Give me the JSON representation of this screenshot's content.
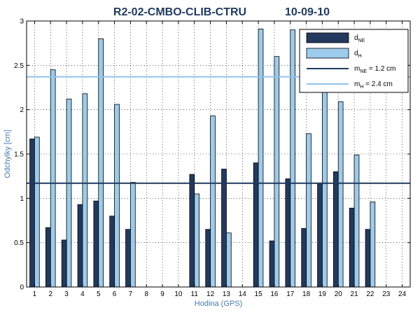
{
  "chart_data": {
    "type": "bar",
    "title_left": "R2-02-CMBO-CLIB-CTRU",
    "title_right": "10-09-10",
    "xlabel": "Hodina (GPS)",
    "ylabel": "Odchylky [cm]",
    "ylim": [
      0,
      3
    ],
    "yticks": [
      "0",
      "0.5",
      "1",
      "1.5",
      "2",
      "2.5",
      "3"
    ],
    "categories": [
      "1",
      "2",
      "3",
      "4",
      "5",
      "6",
      "7",
      "8",
      "9",
      "10",
      "11",
      "12",
      "13",
      "14",
      "15",
      "16",
      "17",
      "18",
      "19",
      "20",
      "21",
      "22",
      "23",
      "24"
    ],
    "grid": "dotted",
    "legend_placement": "top-right",
    "series": [
      {
        "name": "d",
        "sub": "NE",
        "color": "#233a5e",
        "values": [
          1.67,
          0.67,
          0.53,
          0.93,
          0.97,
          0.8,
          0.65,
          null,
          null,
          null,
          1.27,
          0.65,
          1.33,
          null,
          1.4,
          0.52,
          1.22,
          0.66,
          1.17,
          1.3,
          0.89,
          0.65,
          null,
          null
        ]
      },
      {
        "name": "d",
        "sub": "H",
        "color": "#9dcbeb",
        "values": [
          1.69,
          2.45,
          2.12,
          2.18,
          2.8,
          2.06,
          1.18,
          null,
          null,
          null,
          1.05,
          1.93,
          0.61,
          null,
          2.91,
          2.6,
          2.9,
          1.73,
          2.24,
          2.09,
          1.49,
          0.96,
          null,
          null
        ]
      }
    ],
    "reference_lines": [
      {
        "name": "m",
        "sub": "NE",
        "label_suffix": " = 1.2 cm",
        "value": 1.17,
        "color": "#1f3a5f"
      },
      {
        "name": "m",
        "sub": "H",
        "label_suffix": " = 2.4 cm",
        "value": 2.37,
        "color": "#8fc4ea"
      }
    ]
  }
}
